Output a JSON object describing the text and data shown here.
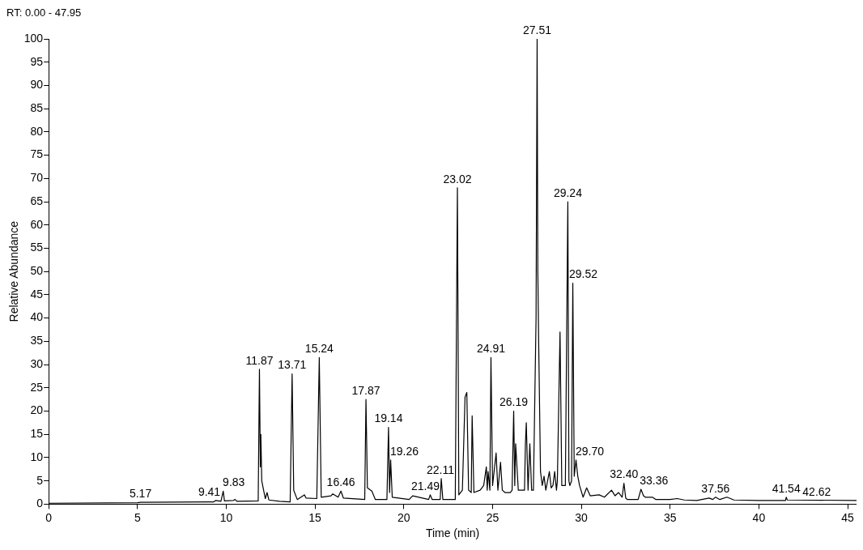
{
  "chart_data": {
    "type": "line",
    "subtitle": "RT: 0.00 - 47.95",
    "xlabel": "Time (min)",
    "ylabel": "Relative Abundance",
    "color": "#000000",
    "grid": false,
    "legend": false,
    "marker": "none",
    "line_style": "solid",
    "xlim": [
      0,
      45.5
    ],
    "xticks": [
      0,
      5,
      10,
      15,
      20,
      25,
      30,
      35,
      40,
      45
    ],
    "ylim": [
      0,
      100
    ],
    "yticks": [
      0,
      5,
      10,
      15,
      20,
      25,
      30,
      35,
      40,
      45,
      50,
      55,
      60,
      65,
      70,
      75,
      80,
      85,
      90,
      95,
      100
    ],
    "x": [
      0,
      5,
      5.17,
      9.3,
      9.41,
      9.7,
      9.83,
      9.9,
      10.4,
      10.5,
      10.6,
      11.8,
      11.87,
      11.92,
      11.95,
      12.0,
      12.2,
      12.3,
      12.4,
      13.0,
      13.6,
      13.71,
      13.8,
      14.0,
      14.4,
      14.5,
      15.1,
      15.24,
      15.35,
      15.9,
      16.0,
      16.3,
      16.46,
      16.6,
      17.8,
      17.87,
      17.95,
      18.2,
      18.4,
      19.05,
      19.14,
      19.2,
      19.26,
      19.35,
      20.3,
      20.5,
      21.4,
      21.49,
      21.6,
      22.05,
      22.11,
      22.2,
      22.9,
      23.02,
      23.1,
      23.3,
      23.45,
      23.55,
      23.65,
      23.8,
      23.85,
      23.95,
      24.3,
      24.5,
      24.65,
      24.7,
      24.75,
      24.85,
      24.91,
      25.0,
      25.2,
      25.3,
      25.45,
      25.55,
      25.7,
      26.0,
      26.1,
      26.19,
      26.25,
      26.3,
      26.45,
      26.8,
      26.85,
      26.9,
      27.0,
      27.1,
      27.2,
      27.3,
      27.45,
      27.51,
      27.55,
      27.6,
      27.7,
      27.8,
      27.9,
      28.0,
      28.2,
      28.3,
      28.4,
      28.5,
      28.6,
      28.65,
      28.8,
      28.9,
      29.0,
      29.1,
      29.24,
      29.3,
      29.35,
      29.45,
      29.52,
      29.6,
      29.7,
      29.8,
      29.9,
      30.1,
      30.3,
      30.5,
      31.0,
      31.3,
      31.7,
      31.9,
      32.1,
      32.3,
      32.4,
      32.5,
      32.6,
      33.2,
      33.36,
      33.5,
      33.6,
      34.0,
      34.2,
      35.0,
      35.4,
      35.8,
      36.5,
      37.2,
      37.4,
      37.56,
      37.8,
      38.2,
      38.6,
      40.0,
      41.5,
      41.54,
      41.6,
      45.5
    ],
    "values": [
      0.2,
      0.3,
      0.4,
      0.5,
      0.8,
      0.6,
      2.8,
      0.7,
      0.8,
      1.0,
      0.6,
      0.7,
      29,
      8,
      15,
      5,
      1.2,
      2.5,
      0.9,
      0.6,
      0.5,
      28,
      3,
      1.0,
      2.0,
      1.3,
      1.2,
      31.5,
      1.5,
      1.8,
      2.2,
      1.5,
      2.8,
      1.3,
      1.0,
      22.5,
      3.5,
      2.8,
      1.0,
      1.0,
      16.5,
      2.5,
      9.5,
      1.5,
      1.0,
      1.8,
      1.0,
      2.0,
      1.0,
      1.0,
      5.5,
      1.0,
      1.0,
      68,
      2,
      3,
      23,
      24,
      3,
      2.5,
      19,
      2.5,
      3,
      4,
      8,
      3,
      7,
      3,
      31.5,
      4,
      11,
      3,
      9,
      3,
      2.5,
      2.5,
      3,
      20,
      4,
      13,
      3,
      3,
      13,
      17.5,
      3,
      13,
      3,
      3,
      40,
      100,
      50,
      34,
      7,
      4,
      6,
      3,
      7,
      3.5,
      4,
      7,
      3,
      5,
      37,
      4,
      4,
      4,
      65,
      5,
      4,
      5,
      47.5,
      6,
      9.5,
      6,
      4,
      1.5,
      3.5,
      1.8,
      2,
      1.5,
      3,
      1.8,
      2.5,
      1.5,
      4.5,
      1.3,
      1,
      1,
      3.2,
      1.8,
      1.5,
      1.5,
      1.0,
      1,
      1.2,
      0.9,
      0.8,
      1.3,
      1.0,
      1.5,
      1.0,
      1.5,
      0.9,
      0.8,
      0.8,
      1.5,
      0.9,
      0.8
    ],
    "annotations": [
      {
        "text": "5.17",
        "x": 5.17,
        "y": 0.4
      },
      {
        "text": "9.41",
        "x": 9.41,
        "y": 0.8
      },
      {
        "text": "9.83",
        "x": 9.83,
        "y": 2.8
      },
      {
        "text": "11.87",
        "x": 11.87,
        "y": 29
      },
      {
        "text": "13.71",
        "x": 13.71,
        "y": 28
      },
      {
        "text": "15.24",
        "x": 15.24,
        "y": 31.5
      },
      {
        "text": "16.46",
        "x": 16.46,
        "y": 2.8
      },
      {
        "text": "17.87",
        "x": 17.87,
        "y": 22.5
      },
      {
        "text": "19.14",
        "x": 19.14,
        "y": 16.5
      },
      {
        "text": "19.26",
        "x": 19.26,
        "y": 9.5
      },
      {
        "text": "21.49",
        "x": 21.49,
        "y": 2.0
      },
      {
        "text": "22.11",
        "x": 22.11,
        "y": 5.5
      },
      {
        "text": "23.02",
        "x": 23.02,
        "y": 68
      },
      {
        "text": "24.91",
        "x": 24.91,
        "y": 31.5
      },
      {
        "text": "26.19",
        "x": 26.19,
        "y": 20
      },
      {
        "text": "27.51",
        "x": 27.51,
        "y": 100
      },
      {
        "text": "29.24",
        "x": 29.24,
        "y": 65
      },
      {
        "text": "29.52",
        "x": 29.52,
        "y": 47.5
      },
      {
        "text": "29.70",
        "x": 29.7,
        "y": 9.5
      },
      {
        "text": "32.40",
        "x": 32.4,
        "y": 4.5
      },
      {
        "text": "33.36",
        "x": 33.36,
        "y": 3.2
      },
      {
        "text": "37.56",
        "x": 37.56,
        "y": 1.5
      },
      {
        "text": "41.54",
        "x": 41.54,
        "y": 1.5
      },
      {
        "text": "42.62",
        "x": 42.62,
        "y": 0.8
      }
    ]
  }
}
